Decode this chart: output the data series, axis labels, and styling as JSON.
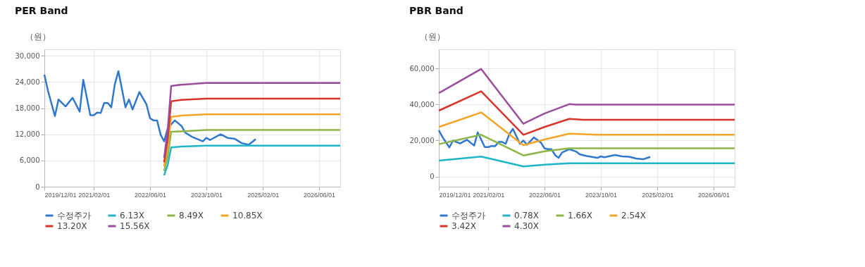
{
  "chart_data": [
    {
      "type": "line",
      "title": "PER Band",
      "ylabel": "（원）",
      "xlim": [
        "2019-12-01",
        "2026-12-01"
      ],
      "ylim": [
        0,
        31500
      ],
      "xticks": [
        {
          "value": "2019-12-01",
          "label": "2019/12/01"
        },
        {
          "value": "2021-02-01",
          "label": "2021/02/01"
        },
        {
          "value": "2022-06-01",
          "label": "2022/06/01"
        },
        {
          "value": "2023-10-01",
          "label": "2023/10/01"
        },
        {
          "value": "2025-02-01",
          "label": "2025/02/01"
        },
        {
          "value": "2026-06-01",
          "label": "2026/06/01"
        }
      ],
      "yticks": [
        {
          "value": 0,
          "label": "0"
        },
        {
          "value": 6000,
          "label": "6,000"
        },
        {
          "value": 12000,
          "label": "12,000"
        },
        {
          "value": 18000,
          "label": "18,000"
        },
        {
          "value": 24000,
          "label": "24,000"
        },
        {
          "value": 30000,
          "label": "30,000"
        }
      ],
      "grid": true,
      "legend": "bottom",
      "marker": "none",
      "line_style": "solid",
      "series": [
        {
          "name": "수정주가",
          "color": "#2f78cc",
          "x": [
            "2019-12",
            "2020-01",
            "2020-03",
            "2020-04",
            "2020-06",
            "2020-08",
            "2020-10",
            "2020-11",
            "2021-01",
            "2021-02",
            "2021-03",
            "2021-04",
            "2021-05",
            "2021-06",
            "2021-07",
            "2021-08",
            "2021-09",
            "2021-11",
            "2021-12",
            "2022-01",
            "2022-03",
            "2022-05",
            "2022-06",
            "2022-07",
            "2022-08",
            "2022-09",
            "2022-10",
            "2022-11",
            "2023-01",
            "2023-03",
            "2023-04",
            "2023-06",
            "2023-09",
            "2023-10",
            "2023-11",
            "2024-02",
            "2024-04",
            "2024-06",
            "2024-08",
            "2024-10",
            "2024-12"
          ],
          "values": [
            25700,
            22000,
            16200,
            20000,
            18400,
            20400,
            17200,
            24500,
            16400,
            16400,
            17000,
            16900,
            19200,
            19200,
            18200,
            23500,
            26500,
            18200,
            20000,
            17700,
            21700,
            18900,
            15700,
            15200,
            15200,
            11900,
            10400,
            13400,
            15200,
            13900,
            12400,
            11400,
            10400,
            11200,
            10700,
            12000,
            11200,
            11000,
            10000,
            9600,
            10900
          ]
        },
        {
          "name": "6.13X",
          "color": "#1fb5c9",
          "x": [
            "2022-10",
            "2022-11",
            "2022-12",
            "2023-03",
            "2023-10",
            "2026-12"
          ],
          "values": [
            2600,
            5000,
            9000,
            9200,
            9400,
            9400
          ]
        },
        {
          "name": "8.49X",
          "color": "#8db548",
          "x": [
            "2022-10",
            "2022-11",
            "2022-12",
            "2023-03",
            "2023-10",
            "2026-12"
          ],
          "values": [
            3600,
            7000,
            12600,
            12700,
            13000,
            13000
          ]
        },
        {
          "name": "10.85X",
          "color": "#f5a426",
          "x": [
            "2022-10",
            "2022-11",
            "2022-12",
            "2023-03",
            "2023-10",
            "2026-12"
          ],
          "values": [
            4600,
            9000,
            16000,
            16300,
            16600,
            16600
          ]
        },
        {
          "name": "13.20X",
          "color": "#d7352b",
          "x": [
            "2022-10",
            "2022-11",
            "2022-12",
            "2023-03",
            "2023-10",
            "2026-12"
          ],
          "values": [
            5600,
            11000,
            19600,
            19900,
            20200,
            20200
          ]
        },
        {
          "name": "15.56X",
          "color": "#9a4d9c",
          "x": [
            "2022-10",
            "2022-11",
            "2022-12",
            "2023-03",
            "2023-10",
            "2026-12"
          ],
          "values": [
            6600,
            13000,
            23100,
            23400,
            23800,
            23800
          ]
        }
      ]
    },
    {
      "type": "line",
      "title": "PBR Band",
      "ylabel": "（원）",
      "xlim": [
        "2019-12-01",
        "2026-12-01"
      ],
      "ylim": [
        -5600,
        70600
      ],
      "xticks": [
        {
          "value": "2019-12-01",
          "label": "2019/12/01"
        },
        {
          "value": "2021-02-01",
          "label": "2021/02/01"
        },
        {
          "value": "2022-06-01",
          "label": "2022/06/01"
        },
        {
          "value": "2023-10-01",
          "label": "2023/10/01"
        },
        {
          "value": "2025-02-01",
          "label": "2025/02/01"
        },
        {
          "value": "2026-06-01",
          "label": "2026/06/01"
        }
      ],
      "yticks": [
        {
          "value": 0,
          "label": "0"
        },
        {
          "value": 20000,
          "label": "20,000"
        },
        {
          "value": 40000,
          "label": "40,000"
        },
        {
          "value": 60000,
          "label": "60,000"
        }
      ],
      "grid": true,
      "legend": "bottom",
      "marker": "none",
      "line_style": "solid",
      "series": [
        {
          "name": "수정주가",
          "color": "#2f78cc",
          "x": [
            "2019-12",
            "2020-01",
            "2020-03",
            "2020-04",
            "2020-06",
            "2020-08",
            "2020-10",
            "2020-11",
            "2021-01",
            "2021-02",
            "2021-03",
            "2021-04",
            "2021-05",
            "2021-06",
            "2021-07",
            "2021-08",
            "2021-09",
            "2021-11",
            "2021-12",
            "2022-01",
            "2022-03",
            "2022-05",
            "2022-06",
            "2022-07",
            "2022-08",
            "2022-09",
            "2022-10",
            "2022-11",
            "2023-01",
            "2023-03",
            "2023-04",
            "2023-06",
            "2023-09",
            "2023-10",
            "2023-11",
            "2024-02",
            "2024-04",
            "2024-06",
            "2024-08",
            "2024-10",
            "2024-12"
          ],
          "values": [
            25700,
            22000,
            16200,
            20000,
            18400,
            20400,
            17200,
            24500,
            16400,
            16400,
            17000,
            16900,
            19200,
            19200,
            18200,
            23500,
            26500,
            18200,
            20000,
            17700,
            21700,
            18900,
            15700,
            15200,
            15200,
            11900,
            10400,
            13400,
            15200,
            13900,
            12400,
            11400,
            10400,
            11200,
            10700,
            12000,
            11200,
            11000,
            10000,
            9600,
            10900
          ]
        },
        {
          "name": "0.78X",
          "color": "#1fb5c9",
          "x": [
            "2019-12",
            "2020-12",
            "2021-12",
            "2022-06",
            "2023-01",
            "2026-12"
          ],
          "values": [
            8900,
            11100,
            5600,
            6600,
            7400,
            7400
          ]
        },
        {
          "name": "1.66X",
          "color": "#8db548",
          "x": [
            "2019-12",
            "2020-12",
            "2021-12",
            "2022-06",
            "2023-01",
            "2026-12"
          ],
          "values": [
            18000,
            23200,
            11700,
            14000,
            15700,
            15700
          ]
        },
        {
          "name": "2.54X",
          "color": "#f5a426",
          "x": [
            "2019-12",
            "2020-12",
            "2021-12",
            "2022-06",
            "2023-01",
            "2023-09",
            "2026-12"
          ],
          "values": [
            27500,
            35600,
            17400,
            20600,
            23800,
            23200,
            23200
          ]
        },
        {
          "name": "3.42X",
          "color": "#d7352b",
          "x": [
            "2019-12",
            "2020-12",
            "2021-12",
            "2022-06",
            "2023-01",
            "2023-05",
            "2026-12"
          ],
          "values": [
            36600,
            47300,
            23200,
            27500,
            32000,
            31500,
            31500
          ]
        },
        {
          "name": "4.30X",
          "color": "#9a4d9c",
          "x": [
            "2019-12",
            "2020-12",
            "2021-12",
            "2022-06",
            "2023-01",
            "2023-03",
            "2026-12"
          ],
          "values": [
            46300,
            59700,
            29300,
            35000,
            40200,
            39900,
            39900
          ]
        }
      ]
    }
  ]
}
